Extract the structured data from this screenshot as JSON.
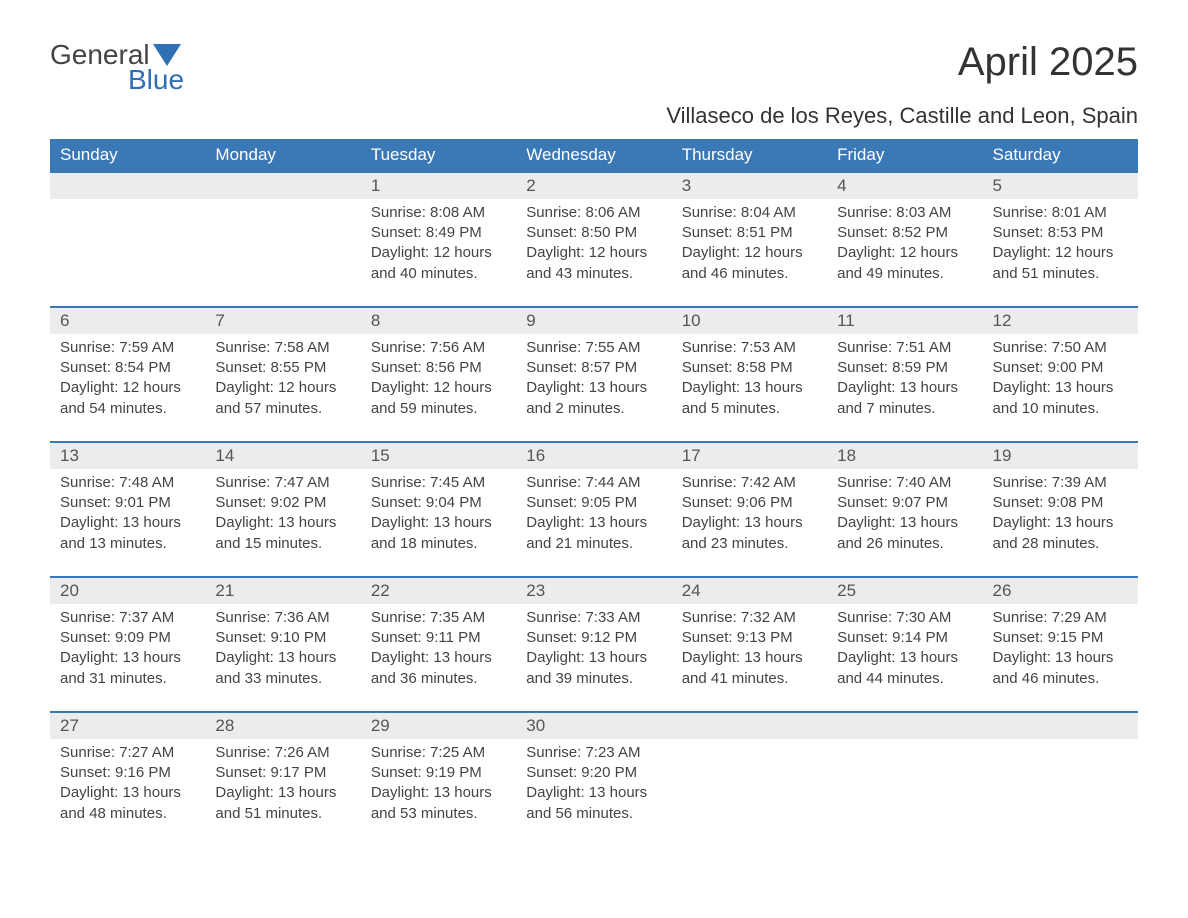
{
  "brand": {
    "name_top": "General",
    "name_bottom": "Blue",
    "logo_color": "#2f6fb3",
    "text_color": "#444444"
  },
  "title": "April 2025",
  "location": "Villaseco de los Reyes, Castille and Leon, Spain",
  "colors": {
    "header_bg": "#3b78b6",
    "header_text": "#ffffff",
    "daynum_bg": "#ececec",
    "rule": "#3b78b6",
    "body_text": "#444444",
    "daynum_text": "#555555"
  },
  "day_headers": [
    "Sunday",
    "Monday",
    "Tuesday",
    "Wednesday",
    "Thursday",
    "Friday",
    "Saturday"
  ],
  "weeks": [
    [
      null,
      null,
      {
        "n": "1",
        "sunrise": "8:08 AM",
        "sunset": "8:49 PM",
        "daylight": "12 hours and 40 minutes."
      },
      {
        "n": "2",
        "sunrise": "8:06 AM",
        "sunset": "8:50 PM",
        "daylight": "12 hours and 43 minutes."
      },
      {
        "n": "3",
        "sunrise": "8:04 AM",
        "sunset": "8:51 PM",
        "daylight": "12 hours and 46 minutes."
      },
      {
        "n": "4",
        "sunrise": "8:03 AM",
        "sunset": "8:52 PM",
        "daylight": "12 hours and 49 minutes."
      },
      {
        "n": "5",
        "sunrise": "8:01 AM",
        "sunset": "8:53 PM",
        "daylight": "12 hours and 51 minutes."
      }
    ],
    [
      {
        "n": "6",
        "sunrise": "7:59 AM",
        "sunset": "8:54 PM",
        "daylight": "12 hours and 54 minutes."
      },
      {
        "n": "7",
        "sunrise": "7:58 AM",
        "sunset": "8:55 PM",
        "daylight": "12 hours and 57 minutes."
      },
      {
        "n": "8",
        "sunrise": "7:56 AM",
        "sunset": "8:56 PM",
        "daylight": "12 hours and 59 minutes."
      },
      {
        "n": "9",
        "sunrise": "7:55 AM",
        "sunset": "8:57 PM",
        "daylight": "13 hours and 2 minutes."
      },
      {
        "n": "10",
        "sunrise": "7:53 AM",
        "sunset": "8:58 PM",
        "daylight": "13 hours and 5 minutes."
      },
      {
        "n": "11",
        "sunrise": "7:51 AM",
        "sunset": "8:59 PM",
        "daylight": "13 hours and 7 minutes."
      },
      {
        "n": "12",
        "sunrise": "7:50 AM",
        "sunset": "9:00 PM",
        "daylight": "13 hours and 10 minutes."
      }
    ],
    [
      {
        "n": "13",
        "sunrise": "7:48 AM",
        "sunset": "9:01 PM",
        "daylight": "13 hours and 13 minutes."
      },
      {
        "n": "14",
        "sunrise": "7:47 AM",
        "sunset": "9:02 PM",
        "daylight": "13 hours and 15 minutes."
      },
      {
        "n": "15",
        "sunrise": "7:45 AM",
        "sunset": "9:04 PM",
        "daylight": "13 hours and 18 minutes."
      },
      {
        "n": "16",
        "sunrise": "7:44 AM",
        "sunset": "9:05 PM",
        "daylight": "13 hours and 21 minutes."
      },
      {
        "n": "17",
        "sunrise": "7:42 AM",
        "sunset": "9:06 PM",
        "daylight": "13 hours and 23 minutes."
      },
      {
        "n": "18",
        "sunrise": "7:40 AM",
        "sunset": "9:07 PM",
        "daylight": "13 hours and 26 minutes."
      },
      {
        "n": "19",
        "sunrise": "7:39 AM",
        "sunset": "9:08 PM",
        "daylight": "13 hours and 28 minutes."
      }
    ],
    [
      {
        "n": "20",
        "sunrise": "7:37 AM",
        "sunset": "9:09 PM",
        "daylight": "13 hours and 31 minutes."
      },
      {
        "n": "21",
        "sunrise": "7:36 AM",
        "sunset": "9:10 PM",
        "daylight": "13 hours and 33 minutes."
      },
      {
        "n": "22",
        "sunrise": "7:35 AM",
        "sunset": "9:11 PM",
        "daylight": "13 hours and 36 minutes."
      },
      {
        "n": "23",
        "sunrise": "7:33 AM",
        "sunset": "9:12 PM",
        "daylight": "13 hours and 39 minutes."
      },
      {
        "n": "24",
        "sunrise": "7:32 AM",
        "sunset": "9:13 PM",
        "daylight": "13 hours and 41 minutes."
      },
      {
        "n": "25",
        "sunrise": "7:30 AM",
        "sunset": "9:14 PM",
        "daylight": "13 hours and 44 minutes."
      },
      {
        "n": "26",
        "sunrise": "7:29 AM",
        "sunset": "9:15 PM",
        "daylight": "13 hours and 46 minutes."
      }
    ],
    [
      {
        "n": "27",
        "sunrise": "7:27 AM",
        "sunset": "9:16 PM",
        "daylight": "13 hours and 48 minutes."
      },
      {
        "n": "28",
        "sunrise": "7:26 AM",
        "sunset": "9:17 PM",
        "daylight": "13 hours and 51 minutes."
      },
      {
        "n": "29",
        "sunrise": "7:25 AM",
        "sunset": "9:19 PM",
        "daylight": "13 hours and 53 minutes."
      },
      {
        "n": "30",
        "sunrise": "7:23 AM",
        "sunset": "9:20 PM",
        "daylight": "13 hours and 56 minutes."
      },
      null,
      null,
      null
    ]
  ],
  "labels": {
    "sunrise": "Sunrise: ",
    "sunset": "Sunset: ",
    "daylight": "Daylight: "
  }
}
